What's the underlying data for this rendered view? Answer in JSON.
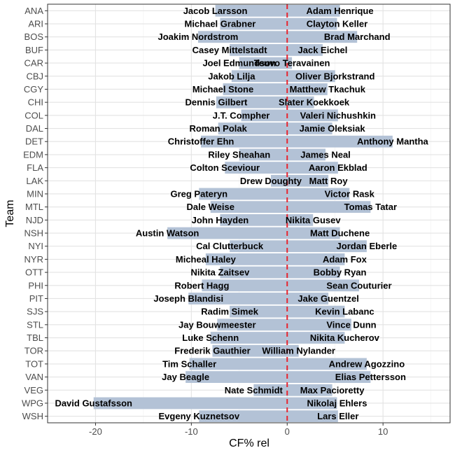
{
  "chart_data": {
    "type": "bar",
    "orientation": "horizontal",
    "xlabel": "CF% rel",
    "ylabel": "Team",
    "xlim": [
      -25,
      17
    ],
    "xticks": [
      -20,
      -10,
      0,
      10
    ],
    "xtick_labels": [
      "-20",
      "-10",
      "0",
      "10"
    ],
    "grid": true,
    "reference_line": {
      "x": 0,
      "style": "dashed",
      "color": "#e8232d"
    },
    "bar_color": "#b3c2d6",
    "teams": [
      "ANA",
      "ARI",
      "BOS",
      "BUF",
      "CAR",
      "CBJ",
      "CGY",
      "CHI",
      "COL",
      "DAL",
      "DET",
      "EDM",
      "FLA",
      "LAK",
      "MIN",
      "MTL",
      "NJD",
      "NSH",
      "NYI",
      "NYR",
      "OTT",
      "PHI",
      "PIT",
      "SJS",
      "STL",
      "TBL",
      "TOR",
      "TOT",
      "VAN",
      "VEG",
      "WPG",
      "WSH"
    ],
    "series": [
      {
        "name": "lowest",
        "values": [
          -7.5,
          -7.0,
          -9.3,
          -6.0,
          -5.0,
          -5.8,
          -6.7,
          -7.4,
          -4.8,
          -7.2,
          -9.0,
          -5.0,
          -6.5,
          -1.7,
          -9.2,
          -8.0,
          -7.0,
          -12.5,
          -6.0,
          -8.5,
          -7.0,
          -8.9,
          -10.3,
          -6.0,
          -7.3,
          -8.0,
          -7.8,
          -10.2,
          -10.6,
          -3.5,
          -20.2,
          -9.2
        ],
        "labels": [
          "Jacob Larsson",
          "Michael Grabner",
          "Joakim Nordstrom",
          "Casey Mittelstadt",
          "Joel Edmundson",
          "Jakob Lilja",
          "Michael Stone",
          "Dennis Gilbert",
          "J.T. Compher",
          "Roman Polak",
          "Christoffer Ehn",
          "Riley Sheahan",
          "Colton Sceviour",
          "Drew Doughty",
          "Greg Pateryn",
          "Dale Weise",
          "John Hayden",
          "Austin Watson",
          "Cal Clutterbuck",
          "Micheal Haley",
          "Nikita Zaitsev",
          "Robert Hagg",
          "Joseph Blandisi",
          "Radim Simek",
          "Jay Bouwmeester",
          "Luke Schenn",
          "Frederik Gauthier",
          "Tim Schaller",
          "Jay Beagle",
          "Nate Schmidt",
          "David Gustafsson",
          "Evgeny Kuznetsov"
        ]
      },
      {
        "name": "highest",
        "values": [
          5.5,
          5.2,
          7.3,
          3.7,
          0.5,
          5.0,
          4.2,
          2.8,
          5.3,
          4.7,
          11.0,
          4.0,
          5.3,
          4.3,
          6.5,
          8.7,
          2.7,
          5.5,
          8.3,
          6.0,
          5.5,
          7.5,
          4.3,
          6.0,
          6.7,
          6.0,
          1.2,
          8.3,
          8.7,
          4.7,
          5.2,
          5.3
        ],
        "labels": [
          "Adam Henrique",
          "Clayton Keller",
          "Brad Marchand",
          "Jack Eichel",
          "Teuvo Teravainen",
          "Oliver Bjorkstrand",
          "Matthew Tkachuk",
          "Slater Koekkoek",
          "Valeri Nichushkin",
          "Jamie Oleksiak",
          "Anthony Mantha",
          "James Neal",
          "Aaron Ekblad",
          "Matt Roy",
          "Victor Rask",
          "Tomas Tatar",
          "Nikita Gusev",
          "Matt Duchene",
          "Jordan Eberle",
          "Adam Fox",
          "Bobby Ryan",
          "Sean Couturier",
          "Jake Guentzel",
          "Kevin Labanc",
          "Vince Dunn",
          "Nikita Kucherov",
          "William Nylander",
          "Andrew Agozzino",
          "Elias Pettersson",
          "Max Pacioretty",
          "Nikolaj Ehlers",
          "Lars Eller"
        ]
      }
    ]
  }
}
